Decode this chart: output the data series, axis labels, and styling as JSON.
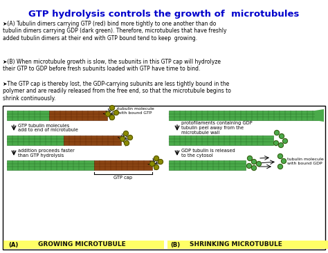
{
  "title": "GTP hydrolysis controls the growth of  microtubules",
  "title_color": "#0000CC",
  "title_fontsize": 9.5,
  "bg_color": "#FFFFFF",
  "text_A": "➤(A) Tubulin dimers carrying GTP (red) bind more tightly to one another than do\ntubulin dimers carrying GDP (dark green). Therefore, microtubules that have freshly\nadded tubulin dimers at their end with GTP bound tend to keep  growing.",
  "text_B": "➤(B) When microtubule growth is slow, the subunits in this GTP cap will hydrolyze\ntheir GTP to GDP before fresh subunits loaded with GTP have time to bind.",
  "text_C": "➤The GTP cap is thereby lost, the GDP-carrying subunits are less tightly bound in the\npolymer and are readily released from the free end, so that the microtubule begins to\nshrink continuously.",
  "label_A": "(A)",
  "label_B": "(B)",
  "growing_label": "GROWING MICROTUBULE",
  "shrinking_label": "SHRINKING MICROTUBULE",
  "yellow_bg": "#FFFF66",
  "green_gdp": "#4aaa4a",
  "brown_gtp": "#8B4513",
  "olive_ball": "#8B8B00",
  "green_ball": "#6aaa00"
}
